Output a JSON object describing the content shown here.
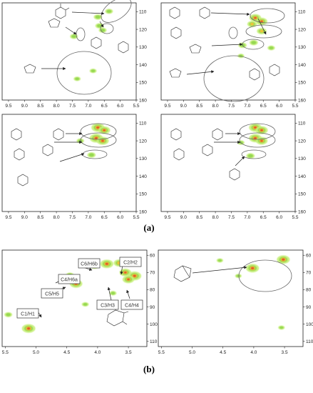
{
  "figure": {
    "caption_a": "(a)",
    "caption_b": "(b)"
  },
  "colors": {
    "frame": "#222222",
    "contour_outer": "#c8ef7a",
    "contour_mid": "#8fd64a",
    "contour_inner": "#f2c237",
    "contour_peak": "#e0522a",
    "annotation": "#333333"
  },
  "chart_data": [
    {
      "type": "heatmap",
      "panel": "a-top-left",
      "xlim": [
        9.7,
        5.5
      ],
      "ylim": [
        105,
        160
      ],
      "x_ticks": [
        "9.5",
        "9.0",
        "8.5",
        "8.0",
        "7.5",
        "7.0",
        "6.5",
        "6.0",
        "5.5"
      ],
      "y_ticks": [
        "110",
        "120",
        "130",
        "140",
        "150",
        "160"
      ],
      "y_axis_side": "right",
      "cross_peaks": [
        {
          "x": 6.35,
          "y": 109.8,
          "intensity": 0.25
        },
        {
          "x": 6.7,
          "y": 113.0,
          "intensity": 0.3
        },
        {
          "x": 6.65,
          "y": 118.0,
          "intensity": 0.3
        },
        {
          "x": 6.55,
          "y": 120.5,
          "intensity": 0.25
        },
        {
          "x": 7.45,
          "y": 124.0,
          "intensity": 0.25
        },
        {
          "x": 7.35,
          "y": 148.0,
          "intensity": 0.15
        },
        {
          "x": 6.85,
          "y": 143.5,
          "intensity": 0.15
        }
      ]
    },
    {
      "type": "heatmap",
      "panel": "a-top-right",
      "xlim": [
        9.7,
        5.5
      ],
      "ylim": [
        105,
        160
      ],
      "x_ticks": [
        "9.5",
        "9.0",
        "8.5",
        "8.0",
        "7.5",
        "7.0",
        "6.5",
        "6.0",
        "5.5"
      ],
      "y_ticks": [
        "110",
        "120",
        "130",
        "140",
        "150",
        "160"
      ],
      "y_axis_side": "right",
      "cross_peaks": [
        {
          "x": 6.75,
          "y": 113.5,
          "intensity": 0.7
        },
        {
          "x": 6.55,
          "y": 115.5,
          "intensity": 0.65
        },
        {
          "x": 6.85,
          "y": 117.0,
          "intensity": 0.45
        },
        {
          "x": 6.55,
          "y": 121.0,
          "intensity": 0.45
        },
        {
          "x": 6.8,
          "y": 127.5,
          "intensity": 0.3
        },
        {
          "x": 7.15,
          "y": 129.0,
          "intensity": 0.3
        },
        {
          "x": 6.25,
          "y": 130.5,
          "intensity": 0.2
        },
        {
          "x": 7.2,
          "y": 135.0,
          "intensity": 0.1
        }
      ]
    },
    {
      "type": "heatmap",
      "panel": "a-bottom-left",
      "xlim": [
        9.7,
        5.5
      ],
      "ylim": [
        105,
        160
      ],
      "x_ticks": [
        "9.5",
        "9.0",
        "8.5",
        "8.0",
        "7.5",
        "7.0",
        "6.5",
        "6.0",
        "5.5"
      ],
      "y_ticks": [
        "110",
        "120",
        "130",
        "140",
        "150",
        "160"
      ],
      "y_axis_side": "right",
      "cross_peaks": [
        {
          "x": 6.7,
          "y": 112.5,
          "intensity": 0.85
        },
        {
          "x": 6.5,
          "y": 114.0,
          "intensity": 0.7
        },
        {
          "x": 6.75,
          "y": 118.5,
          "intensity": 0.9
        },
        {
          "x": 6.55,
          "y": 120.0,
          "intensity": 0.75
        },
        {
          "x": 6.9,
          "y": 128.0,
          "intensity": 0.3
        },
        {
          "x": 7.25,
          "y": 120.0,
          "intensity": 0.2
        }
      ]
    },
    {
      "type": "heatmap",
      "panel": "a-bottom-right",
      "xlim": [
        9.7,
        5.5
      ],
      "ylim": [
        105,
        160
      ],
      "x_ticks": [
        "9.5",
        "9.0",
        "8.5",
        "8.0",
        "7.5",
        "7.0",
        "6.5",
        "6.0",
        "5.5"
      ],
      "y_ticks": [
        "110",
        "120",
        "130",
        "140",
        "150",
        "160"
      ],
      "y_axis_side": "right",
      "cross_peaks": [
        {
          "x": 6.75,
          "y": 112.5,
          "intensity": 0.8
        },
        {
          "x": 6.55,
          "y": 114.0,
          "intensity": 0.75
        },
        {
          "x": 6.75,
          "y": 118.5,
          "intensity": 0.8
        },
        {
          "x": 6.55,
          "y": 120.0,
          "intensity": 0.7
        },
        {
          "x": 6.9,
          "y": 128.5,
          "intensity": 0.3
        },
        {
          "x": 7.2,
          "y": 121.0,
          "intensity": 0.15
        }
      ]
    },
    {
      "type": "heatmap",
      "panel": "b-left",
      "xlim": [
        5.55,
        3.2
      ],
      "ylim": [
        57,
        113
      ],
      "x_ticks": [
        "5.5",
        "5.0",
        "4.5",
        "4.0",
        "3.5"
      ],
      "y_ticks": [
        "60",
        "70",
        "80",
        "90",
        "100",
        "110"
      ],
      "y_axis_side": "right",
      "cross_peaks": [
        {
          "x": 5.12,
          "y": 102.5,
          "intensity": 0.9
        },
        {
          "x": 5.45,
          "y": 94.5,
          "intensity": 0.25
        },
        {
          "x": 4.35,
          "y": 76.5,
          "intensity": 0.8
        },
        {
          "x": 4.05,
          "y": 66.0,
          "intensity": 0.5
        },
        {
          "x": 3.85,
          "y": 65.0,
          "intensity": 0.85
        },
        {
          "x": 3.65,
          "y": 64.5,
          "intensity": 0.6
        },
        {
          "x": 3.55,
          "y": 70.0,
          "intensity": 0.7
        },
        {
          "x": 3.4,
          "y": 72.0,
          "intensity": 0.9
        },
        {
          "x": 3.5,
          "y": 74.0,
          "intensity": 0.7
        },
        {
          "x": 4.45,
          "y": 71.5,
          "intensity": 0.25
        },
        {
          "x": 4.2,
          "y": 88.5,
          "intensity": 0.15
        },
        {
          "x": 3.75,
          "y": 82.0,
          "intensity": 0.15
        }
      ],
      "annotations": [
        "C6/H6b",
        "C4/H6a",
        "C5/H5",
        "C2/H2",
        "C3/H3",
        "C4/H4",
        "C1/H1"
      ]
    },
    {
      "type": "heatmap",
      "panel": "b-right",
      "xlim": [
        5.55,
        3.2
      ],
      "ylim": [
        57,
        113
      ],
      "x_ticks": [
        "5.5",
        "5.0",
        "4.5",
        "4.0",
        "3.5"
      ],
      "y_ticks": [
        "60",
        "70",
        "80",
        "90",
        "100",
        "110"
      ],
      "y_axis_side": "right",
      "cross_peaks": [
        {
          "x": 4.02,
          "y": 67.5,
          "intensity": 0.85
        },
        {
          "x": 3.52,
          "y": 62.5,
          "intensity": 0.85
        },
        {
          "x": 4.25,
          "y": 72.0,
          "intensity": 0.1
        },
        {
          "x": 3.55,
          "y": 102.0,
          "intensity": 0.1
        },
        {
          "x": 4.55,
          "y": 63.0,
          "intensity": 0.1
        }
      ]
    }
  ]
}
